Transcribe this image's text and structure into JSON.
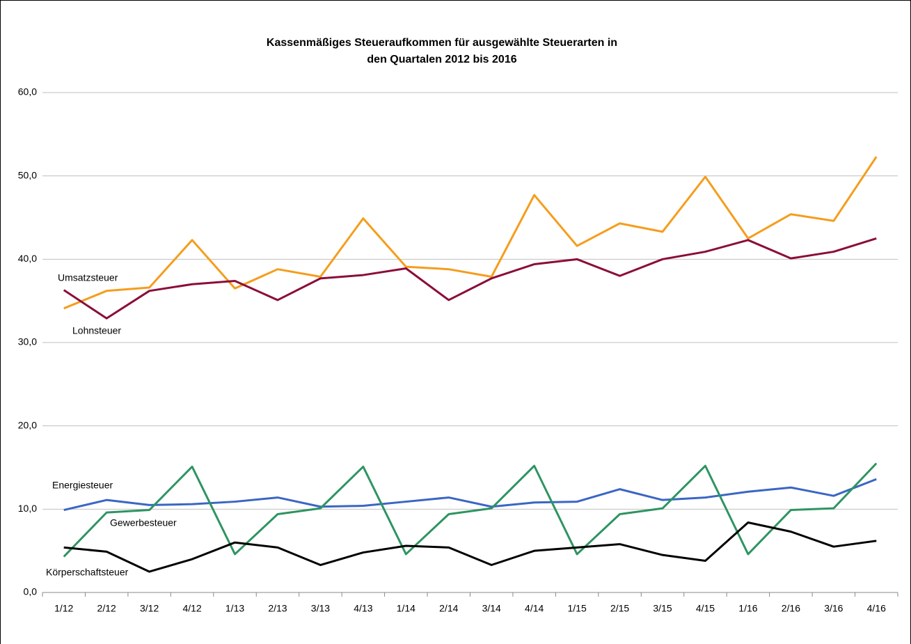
{
  "chart_data": {
    "type": "line",
    "title": [
      "Kassenmäßiges Steueraufkommen für ausgewählte Steuerarten in",
      "den Quartalen 2012 bis 2016"
    ],
    "categories": [
      "1/12",
      "2/12",
      "3/12",
      "4/12",
      "1/13",
      "2/13",
      "3/13",
      "4/13",
      "1/14",
      "2/14",
      "3/14",
      "4/14",
      "1/15",
      "2/15",
      "3/15",
      "4/15",
      "1/16",
      "2/16",
      "3/16",
      "4/16"
    ],
    "ylim": [
      0,
      60
    ],
    "yticks": [
      {
        "value": 0,
        "label": "0,0"
      },
      {
        "value": 10,
        "label": "10,0"
      },
      {
        "value": 20,
        "label": "20,0"
      },
      {
        "value": 30,
        "label": "30,0"
      },
      {
        "value": 40,
        "label": "40,0"
      },
      {
        "value": 50,
        "label": "50,0"
      },
      {
        "value": 60,
        "label": "60,0"
      }
    ],
    "grid": true,
    "series": [
      {
        "name": "Umsatzsteuer",
        "color": "#f59d1c",
        "values": [
          34.1,
          36.2,
          36.6,
          42.3,
          36.5,
          38.8,
          37.9,
          44.9,
          39.1,
          38.8,
          37.9,
          47.7,
          41.6,
          44.3,
          43.3,
          49.9,
          42.5,
          45.4,
          44.6,
          52.3
        ]
      },
      {
        "name": "Lohnsteuer",
        "color": "#8b0d3a",
        "values": [
          36.3,
          32.9,
          36.2,
          37.0,
          37.4,
          35.1,
          37.7,
          38.1,
          38.9,
          35.1,
          37.7,
          39.4,
          40.0,
          38.0,
          40.0,
          40.9,
          42.3,
          40.1,
          40.9,
          42.5
        ]
      },
      {
        "name": "Energiesteuer",
        "color": "#3a66c4",
        "values": [
          9.9,
          11.1,
          10.5,
          10.6,
          10.9,
          11.4,
          10.3,
          10.4,
          10.9,
          11.4,
          10.3,
          10.8,
          10.9,
          12.4,
          11.1,
          11.4,
          12.1,
          12.6,
          11.6,
          13.6
        ]
      },
      {
        "name": "Gewerbesteuer",
        "color": "#2e9462",
        "values": [
          4.3,
          9.6,
          9.9,
          15.1,
          4.6,
          9.4,
          10.1,
          15.1,
          4.6,
          9.4,
          10.1,
          15.2,
          4.6,
          9.4,
          10.1,
          15.2,
          4.6,
          9.9,
          10.1,
          15.5
        ]
      },
      {
        "name": "Körperschaftsteuer",
        "color": "#000000",
        "values": [
          5.4,
          4.9,
          2.5,
          4.0,
          6.0,
          5.4,
          3.3,
          4.8,
          5.6,
          5.4,
          3.3,
          5.0,
          5.4,
          5.8,
          4.5,
          3.8,
          8.4,
          7.3,
          5.5,
          6.2
        ]
      }
    ]
  }
}
